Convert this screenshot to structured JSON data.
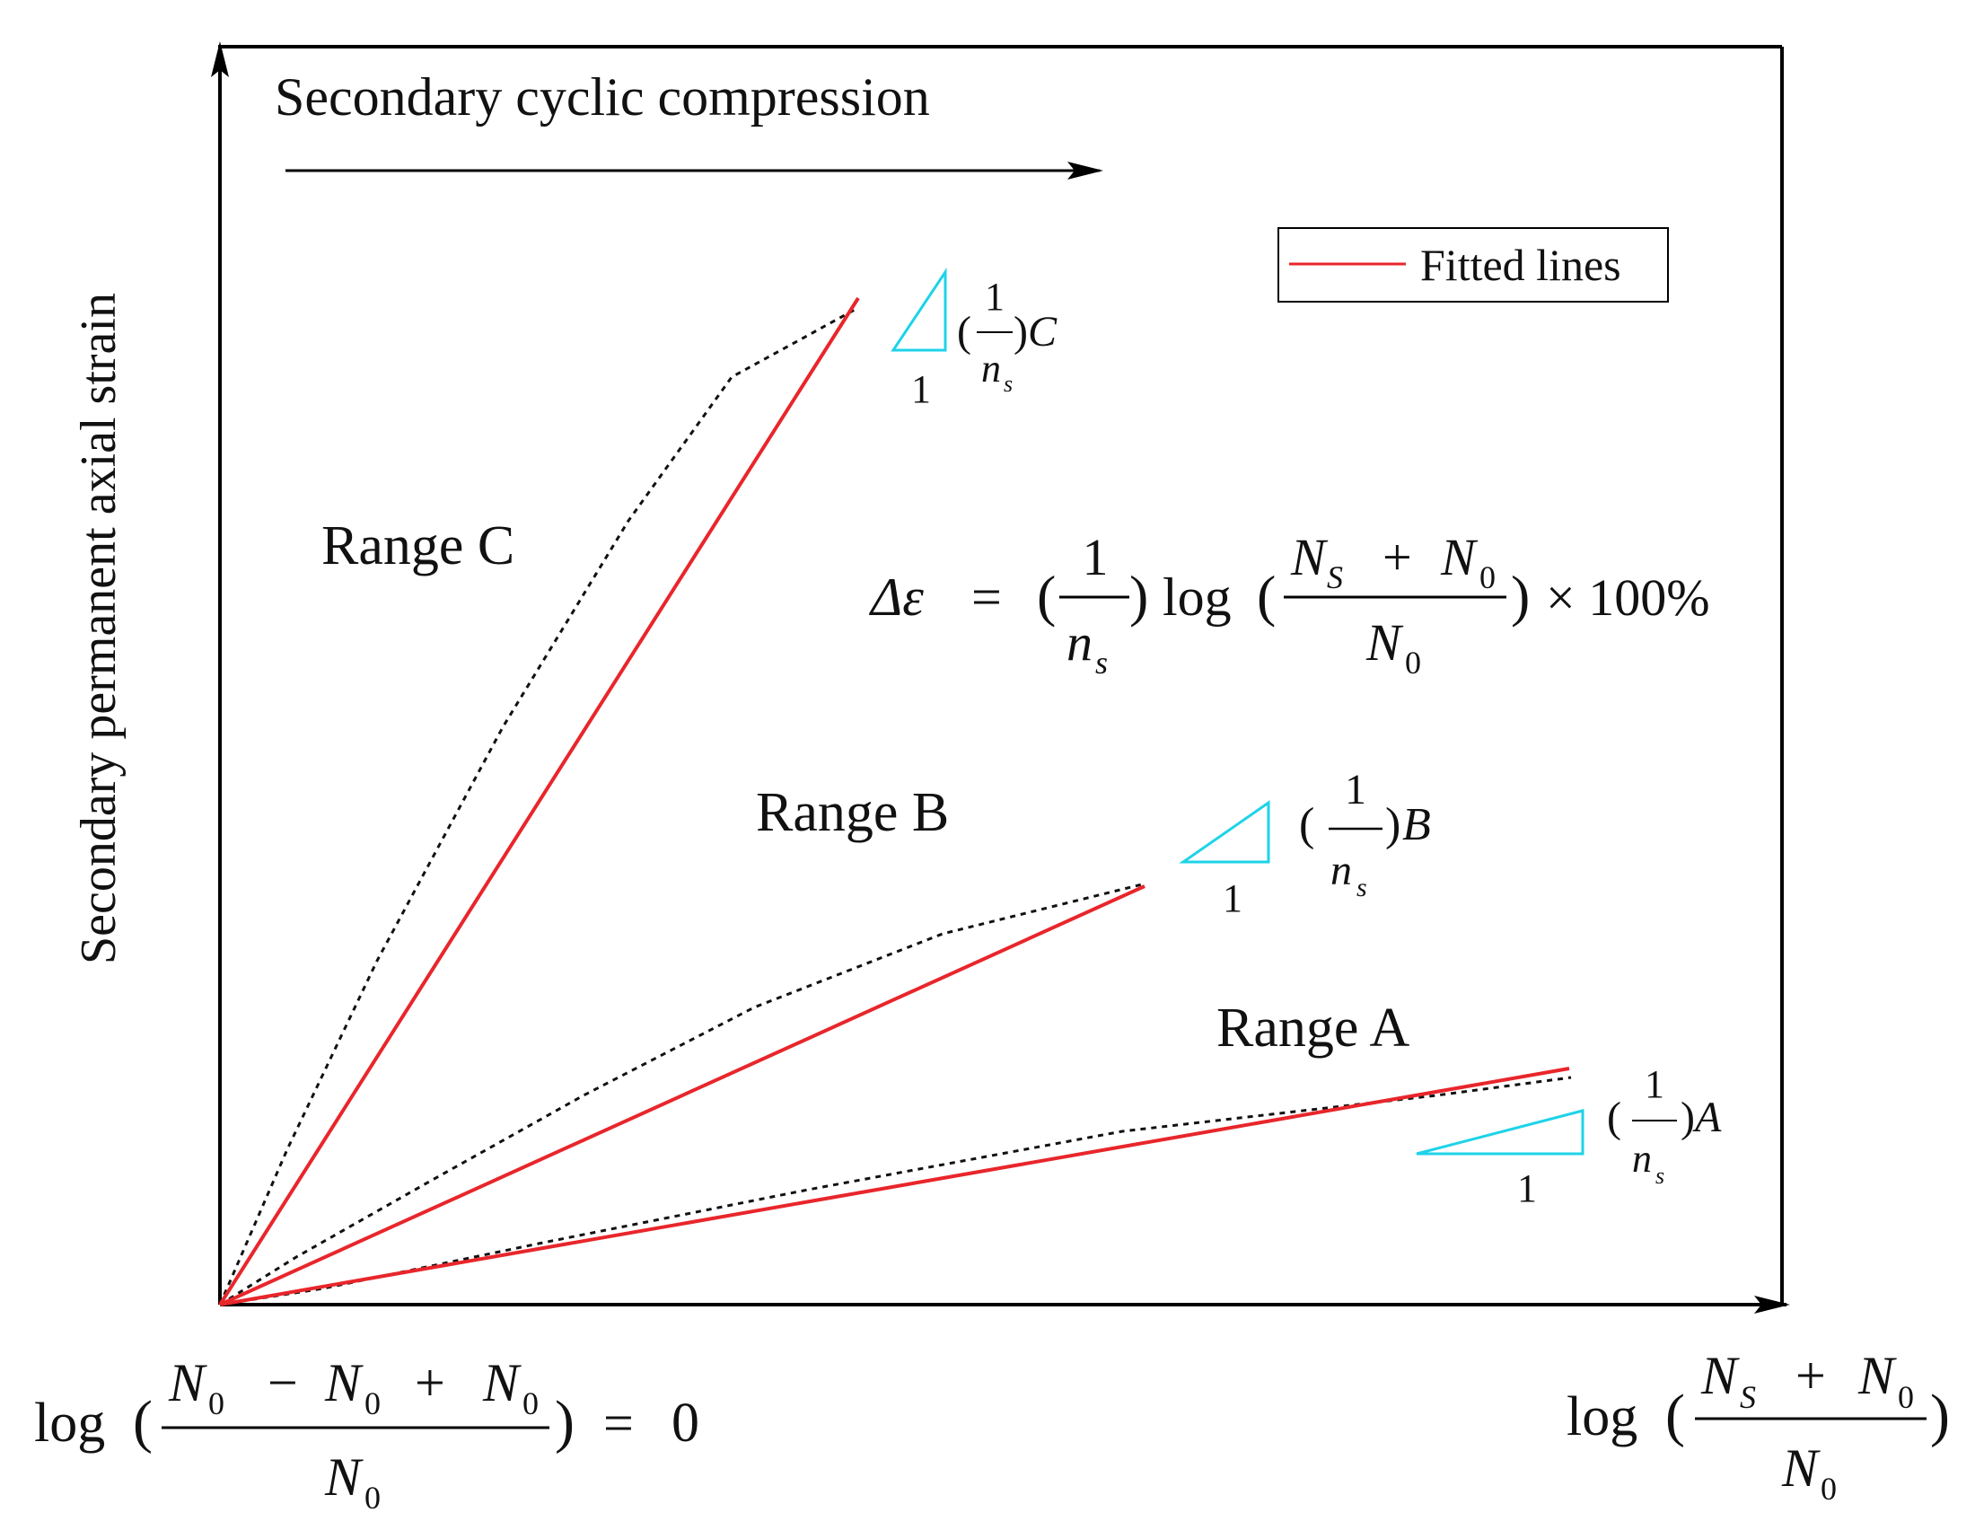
{
  "figure": {
    "y_axis_label": "Secondary permanent axial strain",
    "direction_label": "Secondary cyclic compression",
    "legend": {
      "entry": "Fitted lines",
      "line_color": "#e8262b",
      "placement": "top-right"
    },
    "ranges": [
      {
        "name": "Range C",
        "slope_label_letter": "C"
      },
      {
        "name": "Range B",
        "slope_label_letter": "B"
      },
      {
        "name": "Range A",
        "slope_label_letter": "A"
      }
    ],
    "slope_triangle": {
      "run": "1",
      "rise_numerator": "1",
      "rise_denominator": "n",
      "rise_denominator_sub": "s"
    },
    "equation": {
      "lhs": "Δε",
      "eq": "=",
      "coef_num": "1",
      "coef_den": "n",
      "coef_den_sub": "s",
      "func": "log",
      "arg_num_a": "N",
      "arg_num_a_sub": "S",
      "plus": "+",
      "arg_num_b": "N",
      "arg_num_b_sub": "0",
      "arg_den": "N",
      "arg_den_sub": "0",
      "tail": "× 100%"
    },
    "x_origin_label": {
      "func": "log",
      "num_a": "N",
      "num_a_sub": "0",
      "minus": "−",
      "num_b": "N",
      "num_b_sub": "0",
      "plus": "+",
      "num_c": "N",
      "num_c_sub": "0",
      "den": "N",
      "den_sub": "0",
      "eq": "=",
      "value": "0"
    },
    "x_end_label": {
      "func": "log",
      "num_a": "N",
      "num_a_sub": "S",
      "plus": "+",
      "num_b": "N",
      "num_b_sub": "0",
      "den": "N",
      "den_sub": "0"
    },
    "colors": {
      "fitted": "#e8262b",
      "data": "#111111",
      "triangle": "#1ed3e8",
      "frame": "#000000"
    }
  }
}
